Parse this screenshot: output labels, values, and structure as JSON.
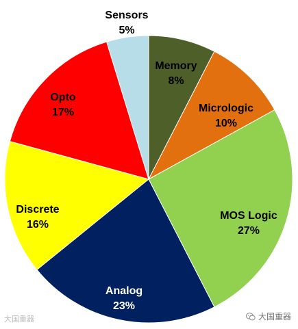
{
  "chart_data": {
    "type": "pie",
    "slices": [
      {
        "label": "Memory",
        "value": 8,
        "value_label": "8%",
        "color": "#4f5f2a",
        "text_color": "#000000"
      },
      {
        "label": "Micrologic",
        "value": 10,
        "value_label": "10%",
        "color": "#e3700e",
        "text_color": "#000000"
      },
      {
        "label": "MOS Logic",
        "value": 27,
        "value_label": "27%",
        "color": "#92d050",
        "text_color": "#000000"
      },
      {
        "label": "Analog",
        "value": 23,
        "value_label": "23%",
        "color": "#002060",
        "text_color": "#ffffff"
      },
      {
        "label": "Discrete",
        "value": 16,
        "value_label": "16%",
        "color": "#ffff00",
        "text_color": "#000000"
      },
      {
        "label": "Opto",
        "value": 17,
        "value_label": "17%",
        "color": "#ff0000",
        "text_color": "#000000"
      },
      {
        "label": "Sensors",
        "value": 5,
        "value_label": "5%",
        "color": "#b7dde8",
        "text_color": "#000000"
      }
    ],
    "start_angle_deg": 0,
    "direction": "clockwise",
    "legend": "none",
    "labels_inside": true
  },
  "watermark": {
    "left_text": "大国重器",
    "right_text": "大国重器",
    "icon": "wechat-icon"
  }
}
